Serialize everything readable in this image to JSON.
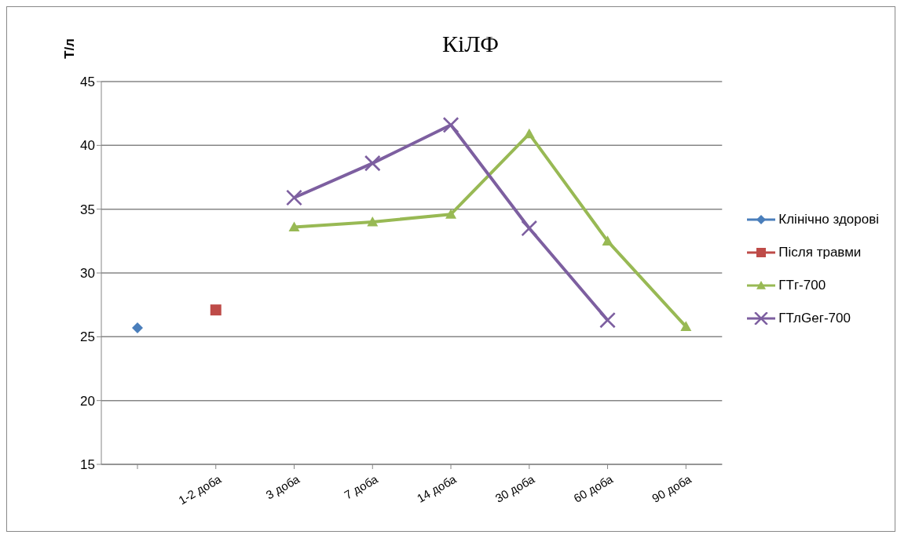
{
  "chart_data": {
    "type": "line",
    "title": "КіЛФ",
    "ylabel": "Т/л",
    "categories": [
      null,
      "1-2 доба",
      "3 доба",
      "7 доба",
      "14 доба",
      "30 доба",
      "60 доба",
      "90 доба"
    ],
    "series": [
      {
        "name": "Клінічно здорові",
        "color": "#4a7ebb",
        "marker": "diamond",
        "values": [
          25.7,
          null,
          null,
          null,
          null,
          null,
          null,
          null
        ]
      },
      {
        "name": "Після травми",
        "color": "#be4b48",
        "marker": "square",
        "values": [
          null,
          27.1,
          null,
          null,
          null,
          null,
          null,
          null
        ]
      },
      {
        "name": "ГТг-700",
        "color": "#98b954",
        "marker": "triangle",
        "values": [
          null,
          null,
          33.6,
          34.0,
          34.6,
          40.9,
          32.5,
          25.8
        ]
      },
      {
        "name": "ГТлGег-700",
        "color": "#7d5fa0",
        "marker": "cross",
        "values": [
          null,
          null,
          35.9,
          38.6,
          41.6,
          33.5,
          26.3,
          null
        ]
      }
    ],
    "ylim": [
      15,
      45
    ],
    "yticks": [
      15,
      20,
      25,
      30,
      35,
      40,
      45
    ],
    "grid": "y",
    "legend": "right"
  }
}
